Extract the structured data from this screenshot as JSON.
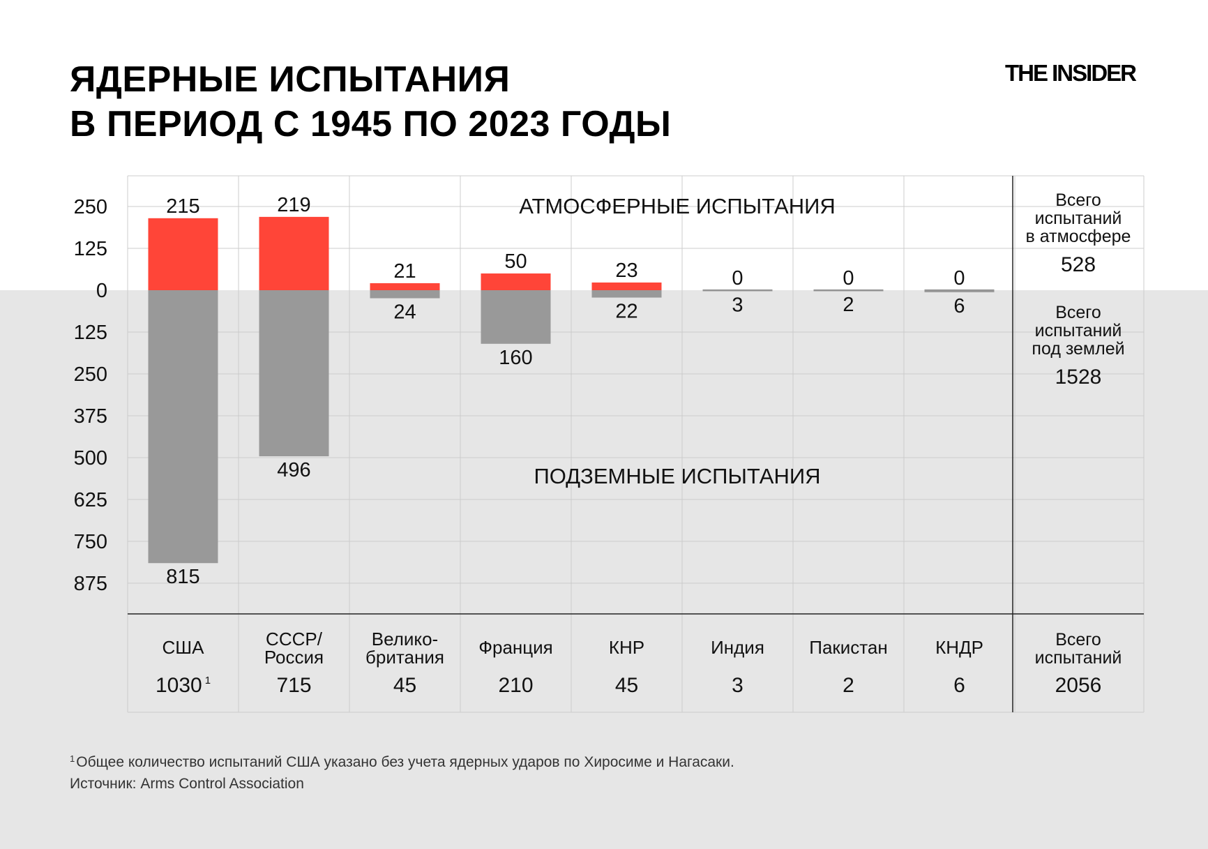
{
  "header": {
    "title_line1": "ЯДЕРНЫЕ ИСПЫТАНИЯ",
    "title_line2": "В ПЕРИОД С 1945 ПО 2023 ГОДЫ",
    "logo": "THE INSIDER"
  },
  "colors": {
    "atmospheric": "#ff4538",
    "underground": "#999999",
    "band": "#e6e6e6",
    "grid": "#cccccc"
  },
  "chart_data": {
    "type": "bar",
    "section_labels": {
      "atmospheric": "АТМОСФЕРНЫЕ ИСПЫТАНИЯ",
      "underground": "ПОДЗЕМНЫЕ ИСПЫТАНИЯ"
    },
    "y_ticks_up": [
      "250",
      "125",
      "0"
    ],
    "y_ticks_down": [
      "125",
      "250",
      "375",
      "500",
      "625",
      "750",
      "875"
    ],
    "ylim_up": 250,
    "ylim_down": 875,
    "categories": [
      {
        "name_lines": [
          "США"
        ],
        "atmospheric": 215,
        "underground": 815,
        "total": "1030",
        "footnote_mark": "1"
      },
      {
        "name_lines": [
          "СССР/",
          "Россия"
        ],
        "atmospheric": 219,
        "underground": 496,
        "total": "715",
        "footnote_mark": ""
      },
      {
        "name_lines": [
          "Велико-",
          "британия"
        ],
        "atmospheric": 21,
        "underground": 24,
        "total": "45",
        "footnote_mark": ""
      },
      {
        "name_lines": [
          "Франция"
        ],
        "atmospheric": 50,
        "underground": 160,
        "total": "210",
        "footnote_mark": ""
      },
      {
        "name_lines": [
          "КНР"
        ],
        "atmospheric": 23,
        "underground": 22,
        "total": "45",
        "footnote_mark": ""
      },
      {
        "name_lines": [
          "Индия"
        ],
        "atmospheric": 0,
        "underground": 3,
        "total": "3",
        "footnote_mark": ""
      },
      {
        "name_lines": [
          "Пакистан"
        ],
        "atmospheric": 0,
        "underground": 2,
        "total": "2",
        "footnote_mark": ""
      },
      {
        "name_lines": [
          "КНДР"
        ],
        "atmospheric": 0,
        "underground": 6,
        "total": "6",
        "footnote_mark": ""
      }
    ],
    "totals": {
      "atmospheric_label_lines": [
        "Всего",
        "испытаний",
        "в атмосфере"
      ],
      "atmospheric_value": "528",
      "underground_label_lines": [
        "Всего",
        "испытаний",
        "под землей"
      ],
      "underground_value": "1528",
      "all_label_lines": [
        "Всего",
        "испытаний"
      ],
      "all_value": "2056"
    }
  },
  "footer": {
    "footnote_mark": "1",
    "footnote": "Общее количество испытаний США указано без учета ядерных ударов по Хиросиме и Нагасаки.",
    "source": "Источник: Arms Control Association"
  }
}
